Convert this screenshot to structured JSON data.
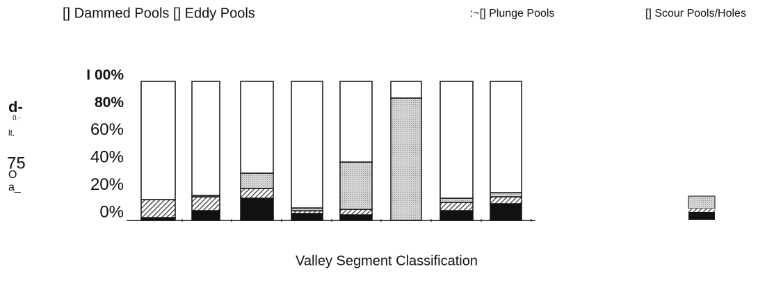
{
  "chart_data": {
    "type": "stacked_bar",
    "xlabel": "Valley Segment Classification",
    "ylabel_fragments": [
      "d-",
      "0.-",
      "lt.",
      "75",
      "O",
      "a_"
    ],
    "legend_texts": [
      "[] Dammed Pools [] Eddy Pools",
      ":~[] Plunge Pools",
      "[] Scour Pools/Holes"
    ],
    "categories": [
      null,
      null,
      null,
      null,
      null,
      null,
      null,
      null
    ],
    "series": [
      {
        "name": "Dammed Pools",
        "color": "#111111",
        "values": [
          2,
          7,
          16,
          5,
          4,
          0,
          7,
          12
        ]
      },
      {
        "name": "Eddy Pools",
        "color": "#666666",
        "pattern": "hatch",
        "values": [
          13,
          10,
          7,
          2,
          4,
          0,
          6,
          5
        ]
      },
      {
        "name": "Plunge Pools",
        "color": "#c8c8c8",
        "values": [
          0,
          1,
          11,
          2,
          34,
          88,
          3,
          3
        ]
      },
      {
        "name": "Scour Pools/Holes",
        "color": "#ffffff",
        "values": [
          85,
          82,
          66,
          91,
          58,
          12,
          84,
          80
        ]
      }
    ],
    "ylim": [
      0,
      100
    ],
    "yticks": [
      {
        "value": 0,
        "label": "0%"
      },
      {
        "value": 20,
        "label": "20%"
      },
      {
        "value": 40,
        "label": "40%"
      },
      {
        "value": 60,
        "label": "60%"
      },
      {
        "value": 80,
        "label": "80%"
      },
      {
        "value": 100,
        "label": "I 00%"
      }
    ],
    "grid": false
  }
}
